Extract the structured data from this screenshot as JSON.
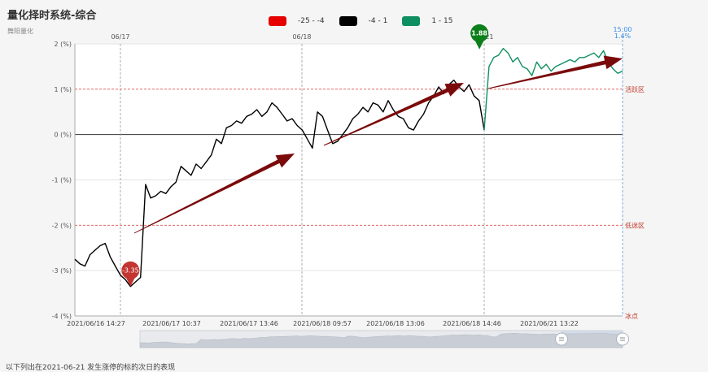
{
  "header": {
    "title": "量化择时系统-综合",
    "subtitle": "舞阳量化"
  },
  "legend": [
    {
      "label": "-25 - -4",
      "color": "#e60000"
    },
    {
      "label": "-4 - 1",
      "color": "#000000"
    },
    {
      "label": "1 - 15",
      "color": "#0e8f5f"
    }
  ],
  "footer": "以下列出在2021-06-21 发生涨停的标的次日的表现",
  "chart_data": {
    "type": "line",
    "ylim": [
      -4,
      2
    ],
    "yticks": [
      {
        "value": 2,
        "label": "2 (%)"
      },
      {
        "value": 1,
        "label": "1 (%)"
      },
      {
        "value": 0,
        "label": "0 (%)"
      },
      {
        "value": -1,
        "label": "-1 (%)"
      },
      {
        "value": -2,
        "label": "-2 (%)"
      },
      {
        "value": -3,
        "label": "-3 (%)"
      },
      {
        "value": -4,
        "label": "-4 (%)"
      }
    ],
    "day_labels": [
      "06/17",
      "06/18",
      "06/21"
    ],
    "xtick_labels": [
      "2021/06/16 14:27",
      "2021/06/17 10:37",
      "2021/06/17 13:46",
      "2021/06/18 09:57",
      "2021/06/18 13:06",
      "2021/06/18 14:46",
      "2021/06/21 13:22"
    ],
    "zones": [
      {
        "value": 1,
        "label": "活跃区"
      },
      {
        "value": -2,
        "label": "低迷区"
      },
      {
        "value": -4,
        "label": "冰点"
      }
    ],
    "min_marker": {
      "value": -3.35,
      "label": "-3.35"
    },
    "max_marker": {
      "value": 1.88,
      "label": "1.88"
    },
    "last_time": "15:00",
    "last_value_label": "1.4%",
    "series": [
      {
        "color": "#000000",
        "values": [
          -2.75,
          -2.85,
          -2.9,
          -2.65,
          -2.55,
          -2.45,
          -2.4,
          -2.7,
          -2.9,
          -3.1,
          -3.2,
          -3.35,
          -3.25,
          -3.15,
          -1.1,
          -1.4,
          -1.35,
          -1.25,
          -1.3,
          -1.15,
          -1.05,
          -0.7,
          -0.8,
          -0.9,
          -0.65,
          -0.75,
          -0.6,
          -0.45,
          -0.1,
          -0.2,
          0.15,
          0.2,
          0.3,
          0.25,
          0.4,
          0.45,
          0.55,
          0.4,
          0.5,
          0.7,
          0.6,
          0.45,
          0.3,
          0.35,
          0.2,
          0.1,
          -0.1,
          -0.3,
          0.5,
          0.4,
          0.1,
          -0.2,
          -0.15,
          0,
          0.15,
          0.35,
          0.45,
          0.6,
          0.5,
          0.7,
          0.65,
          0.5,
          0.75,
          0.55,
          0.4,
          0.35,
          0.15,
          0.1,
          0.3,
          0.45,
          0.7,
          0.85,
          1.05,
          0.9,
          1.1,
          1.2,
          1.05,
          0.95,
          1.1,
          0.85,
          0.75,
          0.1
        ]
      },
      {
        "color": "#0e8f5f",
        "values": [
          0.1,
          1.5,
          1.7,
          1.75,
          1.9,
          1.8,
          1.6,
          1.7,
          1.5,
          1.45,
          1.3,
          1.6,
          1.45,
          1.55,
          1.4,
          1.5,
          1.55,
          1.6,
          1.65,
          1.6,
          1.7,
          1.7,
          1.75,
          1.8,
          1.7,
          1.85,
          1.6,
          1.45,
          1.35,
          1.4
        ]
      }
    ]
  }
}
